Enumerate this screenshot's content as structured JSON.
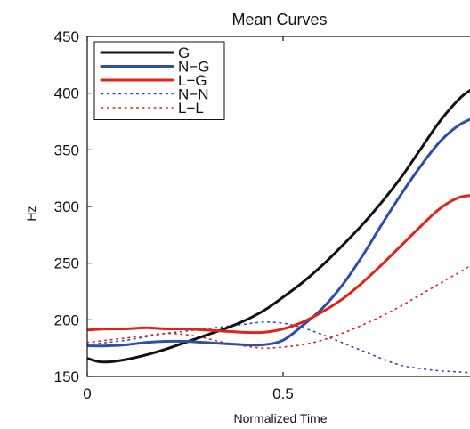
{
  "chart_data": {
    "type": "line",
    "title": "Mean Curves",
    "xlabel": "Normalized Time",
    "ylabel": "Hz",
    "xlim": [
      0,
      1
    ],
    "ylim": [
      150,
      450
    ],
    "xticks": [
      0,
      0.5
    ],
    "xtick_labels": [
      "0",
      "0.5"
    ],
    "yticks": [
      150,
      200,
      250,
      300,
      350,
      400,
      450
    ],
    "ytick_labels": [
      "150",
      "200",
      "250",
      "300",
      "350",
      "400",
      "450"
    ],
    "grid": false,
    "legend_position": "top-left",
    "series": [
      {
        "name": "G",
        "color": "#111111",
        "style": "solid",
        "x": [
          0,
          0.03,
          0.06,
          0.1,
          0.15,
          0.2,
          0.25,
          0.3,
          0.35,
          0.4,
          0.45,
          0.5,
          0.55,
          0.6,
          0.65,
          0.7,
          0.75,
          0.8,
          0.85,
          0.9,
          0.95,
          0.98,
          1.0
        ],
        "y": [
          166,
          163,
          163,
          165,
          169,
          174,
          180,
          186,
          192,
          199,
          208,
          220,
          233,
          248,
          265,
          283,
          303,
          325,
          350,
          375,
          395,
          403,
          407
        ]
      },
      {
        "name": "N−G",
        "color": "#2e4fa8",
        "style": "solid",
        "x": [
          0,
          0.05,
          0.1,
          0.15,
          0.2,
          0.25,
          0.3,
          0.35,
          0.4,
          0.45,
          0.5,
          0.55,
          0.6,
          0.65,
          0.7,
          0.75,
          0.8,
          0.85,
          0.9,
          0.95,
          1.0
        ],
        "y": [
          177,
          177,
          178,
          180,
          181,
          181,
          180,
          179,
          178,
          178,
          182,
          195,
          210,
          230,
          255,
          283,
          310,
          335,
          357,
          372,
          380
        ]
      },
      {
        "name": "L−G",
        "color": "#e2231a",
        "style": "solid",
        "x": [
          0,
          0.05,
          0.1,
          0.15,
          0.2,
          0.25,
          0.3,
          0.35,
          0.4,
          0.45,
          0.5,
          0.55,
          0.6,
          0.65,
          0.7,
          0.75,
          0.8,
          0.85,
          0.9,
          0.95,
          1.0
        ],
        "y": [
          191,
          192,
          192,
          193,
          192,
          192,
          191,
          190,
          189,
          189,
          192,
          198,
          207,
          218,
          232,
          248,
          265,
          282,
          298,
          308,
          310
        ]
      },
      {
        "name": "N−N",
        "color": "#2e4fa8",
        "style": "dotted",
        "x": [
          0,
          0.05,
          0.1,
          0.15,
          0.2,
          0.25,
          0.3,
          0.35,
          0.4,
          0.45,
          0.5,
          0.55,
          0.6,
          0.65,
          0.7,
          0.75,
          0.8,
          0.85,
          0.9,
          0.95,
          1.0
        ],
        "y": [
          178,
          180,
          182,
          185,
          188,
          190,
          192,
          194,
          196,
          198,
          197,
          193,
          187,
          180,
          173,
          166,
          160,
          157,
          155,
          154,
          153
        ]
      },
      {
        "name": "L−L",
        "color": "#e2231a",
        "style": "dotted",
        "x": [
          0,
          0.05,
          0.1,
          0.15,
          0.2,
          0.25,
          0.3,
          0.35,
          0.4,
          0.45,
          0.5,
          0.55,
          0.6,
          0.65,
          0.7,
          0.75,
          0.8,
          0.85,
          0.9,
          0.95,
          1.0
        ],
        "y": [
          180,
          182,
          184,
          186,
          188,
          187,
          184,
          180,
          177,
          175,
          176,
          178,
          182,
          188,
          195,
          203,
          212,
          222,
          232,
          242,
          252
        ]
      }
    ]
  }
}
